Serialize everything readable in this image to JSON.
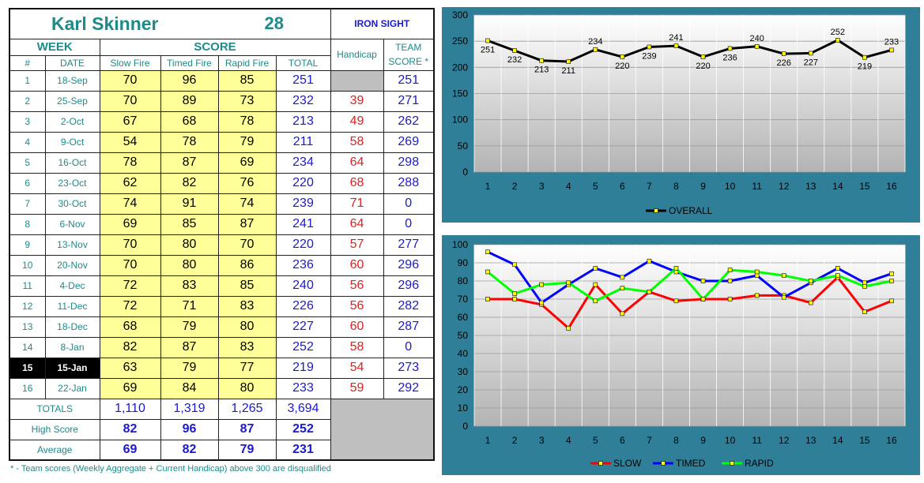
{
  "player": {
    "name": "Karl Skinner",
    "number": "28",
    "division": "IRON SIGHT"
  },
  "headers": {
    "week": "WEEK",
    "score": "SCORE",
    "num": "#",
    "date": "DATE",
    "slow": "Slow Fire",
    "timed": "Timed Fire",
    "rapid": "Rapid Fire",
    "total": "TOTAL",
    "handicap": "Handicap",
    "team_line1": "TEAM",
    "team_line2": "SCORE *"
  },
  "rows": [
    {
      "num": "1",
      "date": "18-Sep",
      "slow": "70",
      "timed": "96",
      "rapid": "85",
      "total": "251",
      "handicap": "",
      "team": "251"
    },
    {
      "num": "2",
      "date": "25-Sep",
      "slow": "70",
      "timed": "89",
      "rapid": "73",
      "total": "232",
      "handicap": "39",
      "team": "271"
    },
    {
      "num": "3",
      "date": "2-Oct",
      "slow": "67",
      "timed": "68",
      "rapid": "78",
      "total": "213",
      "handicap": "49",
      "team": "262"
    },
    {
      "num": "4",
      "date": "9-Oct",
      "slow": "54",
      "timed": "78",
      "rapid": "79",
      "total": "211",
      "handicap": "58",
      "team": "269"
    },
    {
      "num": "5",
      "date": "16-Oct",
      "slow": "78",
      "timed": "87",
      "rapid": "69",
      "total": "234",
      "handicap": "64",
      "team": "298"
    },
    {
      "num": "6",
      "date": "23-Oct",
      "slow": "62",
      "timed": "82",
      "rapid": "76",
      "total": "220",
      "handicap": "68",
      "team": "288"
    },
    {
      "num": "7",
      "date": "30-Oct",
      "slow": "74",
      "timed": "91",
      "rapid": "74",
      "total": "239",
      "handicap": "71",
      "team": "0"
    },
    {
      "num": "8",
      "date": "6-Nov",
      "slow": "69",
      "timed": "85",
      "rapid": "87",
      "total": "241",
      "handicap": "64",
      "team": "0"
    },
    {
      "num": "9",
      "date": "13-Nov",
      "slow": "70",
      "timed": "80",
      "rapid": "70",
      "total": "220",
      "handicap": "57",
      "team": "277"
    },
    {
      "num": "10",
      "date": "20-Nov",
      "slow": "70",
      "timed": "80",
      "rapid": "86",
      "total": "236",
      "handicap": "60",
      "team": "296"
    },
    {
      "num": "11",
      "date": "4-Dec",
      "slow": "72",
      "timed": "83",
      "rapid": "85",
      "total": "240",
      "handicap": "56",
      "team": "296"
    },
    {
      "num": "12",
      "date": "11-Dec",
      "slow": "72",
      "timed": "71",
      "rapid": "83",
      "total": "226",
      "handicap": "56",
      "team": "282"
    },
    {
      "num": "13",
      "date": "18-Dec",
      "slow": "68",
      "timed": "79",
      "rapid": "80",
      "total": "227",
      "handicap": "60",
      "team": "287"
    },
    {
      "num": "14",
      "date": "8-Jan",
      "slow": "82",
      "timed": "87",
      "rapid": "83",
      "total": "252",
      "handicap": "58",
      "team": "0"
    },
    {
      "num": "15",
      "date": "15-Jan",
      "slow": "63",
      "timed": "79",
      "rapid": "77",
      "total": "219",
      "handicap": "54",
      "team": "273"
    },
    {
      "num": "16",
      "date": "22-Jan",
      "slow": "69",
      "timed": "84",
      "rapid": "80",
      "total": "233",
      "handicap": "59",
      "team": "292"
    }
  ],
  "current_week": "15",
  "summary": [
    {
      "label": "TOTALS",
      "slow": "1,110",
      "timed": "1,319",
      "rapid": "1,265",
      "total": "3,694"
    },
    {
      "label": "High Score",
      "slow": "82",
      "timed": "96",
      "rapid": "87",
      "total": "252"
    },
    {
      "label": "Average",
      "slow": "69",
      "timed": "82",
      "rapid": "79",
      "total": "231"
    }
  ],
  "footnote": "* - Team scores (Weekly Aggregate + Current Handicap) above 300 are disqualified",
  "colors": {
    "panel": "#2f7f98",
    "teal_text": "#1e8a8a",
    "score_fill": "#ffff99",
    "blue_text": "#1a1ad0",
    "red_text": "#e02020"
  },
  "chart_data": [
    {
      "type": "line",
      "x": [
        1,
        2,
        3,
        4,
        5,
        6,
        7,
        8,
        9,
        10,
        11,
        12,
        13,
        14,
        15,
        16
      ],
      "ylim": [
        0,
        300
      ],
      "yticks": [
        0,
        50,
        100,
        150,
        200,
        250,
        300
      ],
      "grid": true,
      "legend": "bottom",
      "series": [
        {
          "name": "OVERALL",
          "color": "#000000",
          "marker_color": "#ffff00",
          "values": [
            251,
            232,
            213,
            211,
            234,
            220,
            239,
            241,
            220,
            236,
            240,
            226,
            227,
            252,
            219,
            233
          ]
        }
      ]
    },
    {
      "type": "line",
      "x": [
        1,
        2,
        3,
        4,
        5,
        6,
        7,
        8,
        9,
        10,
        11,
        12,
        13,
        14,
        15,
        16
      ],
      "ylim": [
        0,
        100
      ],
      "yticks": [
        0,
        10,
        20,
        30,
        40,
        50,
        60,
        70,
        80,
        90,
        100
      ],
      "grid": true,
      "legend": "bottom",
      "series": [
        {
          "name": "SLOW",
          "color": "#ff0000",
          "marker_color": "#ffff00",
          "values": [
            70,
            70,
            67,
            54,
            78,
            62,
            74,
            69,
            70,
            70,
            72,
            72,
            68,
            82,
            63,
            69
          ]
        },
        {
          "name": "TIMED",
          "color": "#0000ff",
          "marker_color": "#ffff00",
          "values": [
            96,
            89,
            68,
            78,
            87,
            82,
            91,
            85,
            80,
            80,
            83,
            71,
            79,
            87,
            79,
            84
          ]
        },
        {
          "name": "RAPID",
          "color": "#00ff00",
          "marker_color": "#ffff00",
          "values": [
            85,
            73,
            78,
            79,
            69,
            76,
            74,
            87,
            70,
            86,
            85,
            83,
            80,
            83,
            77,
            80
          ]
        }
      ]
    }
  ]
}
